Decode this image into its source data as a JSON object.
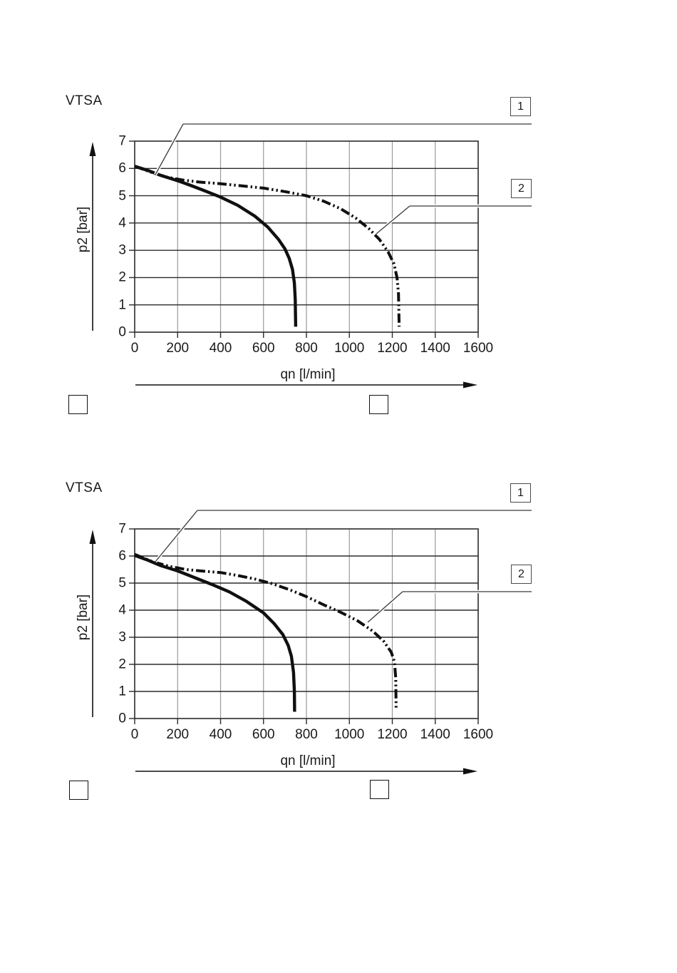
{
  "colors": {
    "curve": "#101010",
    "grid_horizontal": "#2b2b2b",
    "grid_vertical": "#9a9a9a",
    "leader_line": "#3a3a3a",
    "text": "#1a1a1a",
    "background": "#ffffff"
  },
  "chart_data": [
    {
      "type": "line",
      "title": "VTSA",
      "xlabel": "qn [l/min]",
      "ylabel": "p2 [bar]",
      "xlim": [
        0,
        1600
      ],
      "ylim": [
        0,
        7
      ],
      "x_ticks": [
        0,
        200,
        400,
        600,
        800,
        1000,
        1200,
        1400,
        1600
      ],
      "y_ticks": [
        0,
        1,
        2,
        3,
        4,
        5,
        6,
        7
      ],
      "grid": true,
      "legend_position": "numbered-callout-boxes-right",
      "callouts": [
        {
          "label": "1",
          "series": "1"
        },
        {
          "label": "2",
          "series": "2"
        }
      ],
      "empty_box_count": 2,
      "series": [
        {
          "name": "1",
          "line_style": "solid",
          "points": [
            [
              0,
              6.08
            ],
            [
              60,
              5.93
            ],
            [
              120,
              5.75
            ],
            [
              200,
              5.55
            ],
            [
              260,
              5.38
            ],
            [
              320,
              5.2
            ],
            [
              400,
              4.95
            ],
            [
              480,
              4.65
            ],
            [
              560,
              4.25
            ],
            [
              620,
              3.85
            ],
            [
              670,
              3.4
            ],
            [
              700,
              3.05
            ],
            [
              720,
              2.7
            ],
            [
              735,
              2.3
            ],
            [
              744,
              1.8
            ],
            [
              748,
              1.2
            ],
            [
              750,
              0.2
            ]
          ]
        },
        {
          "name": "2",
          "line_style": "dash-dot-dot",
          "points": [
            [
              0,
              6.08
            ],
            [
              80,
              5.85
            ],
            [
              150,
              5.68
            ],
            [
              220,
              5.58
            ],
            [
              300,
              5.5
            ],
            [
              400,
              5.44
            ],
            [
              500,
              5.36
            ],
            [
              600,
              5.28
            ],
            [
              700,
              5.15
            ],
            [
              800,
              5.0
            ],
            [
              880,
              4.8
            ],
            [
              960,
              4.52
            ],
            [
              1030,
              4.18
            ],
            [
              1090,
              3.8
            ],
            [
              1140,
              3.4
            ],
            [
              1180,
              2.95
            ],
            [
              1208,
              2.5
            ],
            [
              1222,
              2.0
            ],
            [
              1229,
              1.4
            ],
            [
              1232,
              0.2
            ]
          ]
        }
      ]
    },
    {
      "type": "line",
      "title": "VTSA",
      "xlabel": "qn [l/min]",
      "ylabel": "p2 [bar]",
      "xlim": [
        0,
        1600
      ],
      "ylim": [
        0,
        7
      ],
      "x_ticks": [
        0,
        200,
        400,
        600,
        800,
        1000,
        1200,
        1400,
        1600
      ],
      "y_ticks": [
        0,
        1,
        2,
        3,
        4,
        5,
        6,
        7
      ],
      "grid": true,
      "legend_position": "numbered-callout-boxes-right",
      "callouts": [
        {
          "label": "1",
          "series": "1"
        },
        {
          "label": "2",
          "series": "2"
        }
      ],
      "empty_box_count": 2,
      "series": [
        {
          "name": "1",
          "line_style": "solid",
          "points": [
            [
              0,
              6.02
            ],
            [
              60,
              5.85
            ],
            [
              120,
              5.65
            ],
            [
              200,
              5.45
            ],
            [
              280,
              5.2
            ],
            [
              360,
              4.95
            ],
            [
              440,
              4.68
            ],
            [
              520,
              4.33
            ],
            [
              600,
              3.9
            ],
            [
              650,
              3.5
            ],
            [
              690,
              3.1
            ],
            [
              715,
              2.7
            ],
            [
              730,
              2.3
            ],
            [
              740,
              1.7
            ],
            [
              744,
              1.0
            ],
            [
              745,
              0.25
            ]
          ]
        },
        {
          "name": "2",
          "line_style": "dash-dot-dot",
          "points": [
            [
              0,
              6.06
            ],
            [
              80,
              5.8
            ],
            [
              160,
              5.62
            ],
            [
              240,
              5.5
            ],
            [
              320,
              5.44
            ],
            [
              400,
              5.39
            ],
            [
              480,
              5.28
            ],
            [
              560,
              5.15
            ],
            [
              640,
              4.98
            ],
            [
              720,
              4.76
            ],
            [
              800,
              4.5
            ],
            [
              880,
              4.2
            ],
            [
              960,
              3.92
            ],
            [
              1040,
              3.6
            ],
            [
              1110,
              3.22
            ],
            [
              1160,
              2.85
            ],
            [
              1195,
              2.45
            ],
            [
              1210,
              2.1
            ],
            [
              1216,
              1.5
            ],
            [
              1218,
              0.3
            ]
          ]
        }
      ]
    }
  ]
}
